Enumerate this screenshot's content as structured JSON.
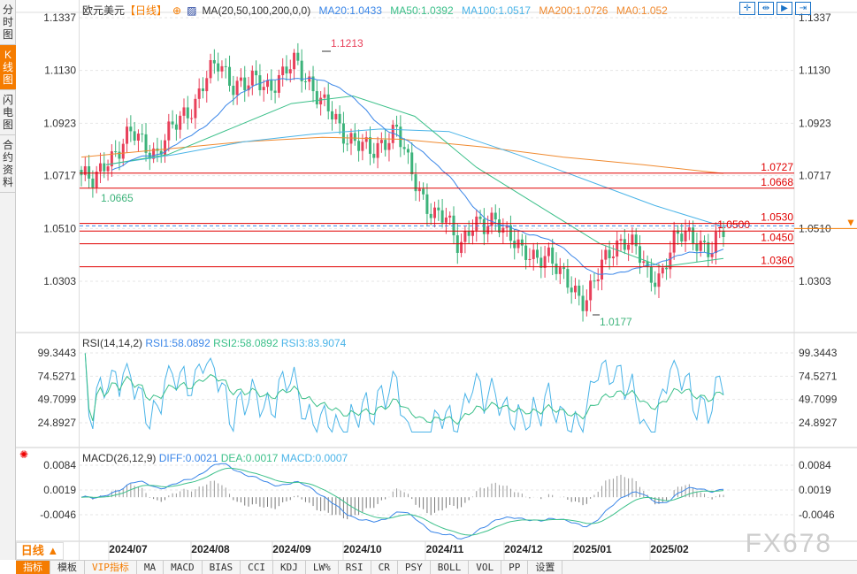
{
  "sidebar": {
    "tabs": [
      {
        "label": "分时图",
        "active": false
      },
      {
        "label": "K线图",
        "active": true
      },
      {
        "label": "闪电图",
        "active": false
      },
      {
        "label": "合约资料",
        "active": false
      }
    ]
  },
  "legend": {
    "symbol": "欧元美元",
    "period": "【日线】",
    "ma_params": "MA(20,50,100,200,0,0)",
    "ma20": "MA20:1.0433",
    "ma50": "MA50:1.0392",
    "ma100": "MA100:1.0517",
    "ma200": "MA200:1.0726",
    "ma0": "MA0:1.052"
  },
  "colors": {
    "up": "#e8405a",
    "down": "#3cb37a",
    "ma20": "#3a86e8",
    "ma50": "#3cc08a",
    "ma100": "#4ab4e8",
    "ma200": "#f08a30",
    "level": "#e00000",
    "accent": "#f57c00"
  },
  "tools": [
    "crosshair-icon",
    "zoom-range-icon",
    "play-forward-icon",
    "scroll-end-icon"
  ],
  "chart_data": {
    "type": "candlestick",
    "price_axis_ticks": [
      "1.1337",
      "1.1130",
      "1.0923",
      "1.0717",
      "1.0510",
      "1.0303"
    ],
    "x_ticks": [
      "2024/07",
      "2024/08",
      "2024/09",
      "2024/10",
      "2024/11",
      "2024/12",
      "2025/01",
      "2025/02"
    ],
    "annotations": {
      "high": "1.1213",
      "low": "1.0177",
      "low_left": "1.0665"
    },
    "levels": [
      "1.0727",
      "1.0668",
      "1.0530",
      "1.0500",
      "1.0450",
      "1.0360"
    ],
    "current_price": "1.0510",
    "approx_closes": [
      1.072,
      1.068,
      1.079,
      1.082,
      1.088,
      1.085,
      1.08,
      1.088,
      1.096,
      1.1,
      1.11,
      1.117,
      1.108,
      1.106,
      1.11,
      1.107,
      1.11,
      1.117,
      1.11,
      1.1,
      1.095,
      1.088,
      1.084,
      1.08,
      1.086,
      1.09,
      1.075,
      1.065,
      1.056,
      1.054,
      1.045,
      1.053,
      1.05,
      1.056,
      1.049,
      1.04,
      1.04,
      1.042,
      1.032,
      1.028,
      1.023,
      1.032,
      1.042,
      1.048,
      1.043,
      1.032,
      1.033,
      1.045,
      1.049,
      1.047,
      1.041,
      1.05
    ],
    "ma200_path": [
      1.079,
      1.082,
      1.085,
      1.0868,
      1.086,
      1.083,
      1.079,
      1.076,
      1.0726
    ],
    "ma100_path": [
      1.076,
      1.08,
      1.085,
      1.088,
      1.09,
      1.089,
      1.08,
      1.07,
      1.06,
      1.0517
    ],
    "ma50_path": [
      1.076,
      1.08,
      1.09,
      1.1,
      1.103,
      1.095,
      1.075,
      1.06,
      1.045,
      1.036,
      1.0392
    ],
    "rsi": {
      "title": "RSI(14,14,2)",
      "rsi1": "RSI1:58.0892",
      "rsi2": "RSI2:58.0892",
      "rsi3": "RSI3:83.9074",
      "ticks": [
        "99.3443",
        "74.5271",
        "49.7099",
        "24.8927"
      ]
    },
    "macd": {
      "title": "MACD(26,12,9)",
      "diff": "DIFF:0.0021",
      "dea": "DEA:0.0017",
      "macd": "MACD:0.0007",
      "ticks": [
        "0.0084",
        "0.0019",
        "-0.0046"
      ]
    }
  },
  "bottom": {
    "period": "日线 ▲",
    "buttons": [
      "指标",
      "模板",
      "VIP指标",
      "MA",
      "MACD",
      "BIAS",
      "CCI",
      "KDJ",
      "LW%",
      "RSI",
      "CR",
      "PSY",
      "BOLL",
      "VOL",
      "PP",
      "设置"
    ]
  },
  "watermark": "FX678"
}
